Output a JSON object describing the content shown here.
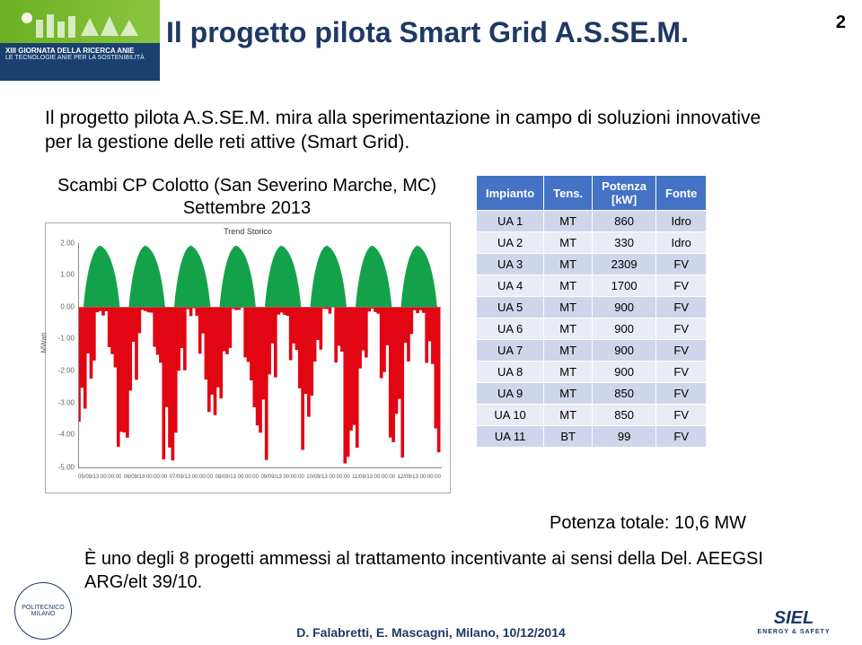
{
  "page_number": "2",
  "title": "Il progetto pilota Smart Grid A.S.SE.M.",
  "subtitle": "Il progetto pilota A.S.SE.M. mira alla sperimentazione in campo di soluzioni innovative per la gestione delle reti attive (Smart Grid).",
  "header_badge": {
    "line1": "XIII GIORNATA DELLA RICERCA ANIE",
    "line2": "LE TECNOLOGIE ANIE PER LA SOSTENIBILITÀ"
  },
  "chart": {
    "caption": "Scambi CP Colotto (San Severino Marche, MC)\nSettembre 2013",
    "small_title": "Trend Storico",
    "y_unit": "MWatt",
    "y_ticks": [
      "2.00",
      "1.00",
      "0.00",
      "-1.00",
      "-2.00",
      "-3.00",
      "-4.00",
      "-5.00"
    ],
    "x_ticks": [
      "05/09/13 00:00:00",
      "06/09/13 00:00:00",
      "07/09/13 00:00:00",
      "08/09/13 00:00:00",
      "09/09/13 00:00:00",
      "10/09/13 00:00:00",
      "11/09/13 00:00:00",
      "12/09/13 00:00:00"
    ],
    "series": {
      "import_color": "#13a24a",
      "export_color": "#e20613"
    }
  },
  "table": {
    "headers": [
      "Impianto",
      "Tens.",
      "Potenza\n[kW]",
      "Fonte"
    ],
    "rows": [
      [
        "UA 1",
        "MT",
        "860",
        "Idro"
      ],
      [
        "UA 2",
        "MT",
        "330",
        "Idro"
      ],
      [
        "UA 3",
        "MT",
        "2309",
        "FV"
      ],
      [
        "UA 4",
        "MT",
        "1700",
        "FV"
      ],
      [
        "UA 5",
        "MT",
        "900",
        "FV"
      ],
      [
        "UA 6",
        "MT",
        "900",
        "FV"
      ],
      [
        "UA 7",
        "MT",
        "900",
        "FV"
      ],
      [
        "UA 8",
        "MT",
        "900",
        "FV"
      ],
      [
        "UA 9",
        "MT",
        "850",
        "FV"
      ],
      [
        "UA 10",
        "MT",
        "850",
        "FV"
      ],
      [
        "UA 11",
        "BT",
        "99",
        "FV"
      ]
    ],
    "total": "Potenza totale: 10,6 MW"
  },
  "bottom_note": "È uno degli 8 progetti ammessi al trattamento incentivante ai sensi della Del. AEEGSI ARG/elt 39/10.",
  "footer": "D. Falabretti, E. Mascagni, Milano, 10/12/2014",
  "polimi": "POLITECNICO\nMILANO",
  "siel": {
    "name": "SIEL",
    "sub": "ENERGY & SAFETY"
  }
}
